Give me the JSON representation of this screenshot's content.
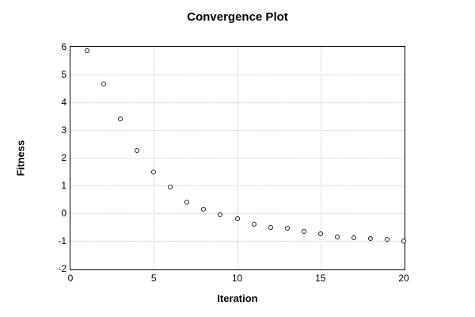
{
  "chart_data": {
    "type": "scatter",
    "title": "Convergence Plot",
    "xlabel": "Iteration",
    "ylabel": "Fitness",
    "x": [
      1,
      2,
      3,
      4,
      5,
      6,
      7,
      8,
      9,
      10,
      11,
      12,
      13,
      14,
      15,
      16,
      17,
      18,
      19,
      20
    ],
    "y": [
      5.85,
      4.65,
      3.4,
      2.25,
      1.5,
      0.95,
      0.4,
      0.15,
      -0.05,
      -0.2,
      -0.4,
      -0.5,
      -0.55,
      -0.65,
      -0.75,
      -0.85,
      -0.88,
      -0.91,
      -0.95,
      -1.0
    ],
    "xlim": [
      0,
      20
    ],
    "ylim": [
      -2,
      6
    ],
    "xticks": [
      0,
      5,
      10,
      15,
      20
    ],
    "yticks": [
      6,
      5,
      4,
      3,
      2,
      1,
      0,
      -1,
      -2
    ],
    "grid": true,
    "grid_x": [
      5,
      10,
      15
    ],
    "grid_y": [
      5,
      4,
      3,
      2,
      1,
      0,
      -1
    ],
    "marker": "open-circle",
    "legend": null,
    "colors": {
      "marker": "#1a1a1a",
      "grid": "#c9c9c9",
      "frame": "#000000",
      "background": "#ffffff",
      "text": "#000000"
    }
  }
}
